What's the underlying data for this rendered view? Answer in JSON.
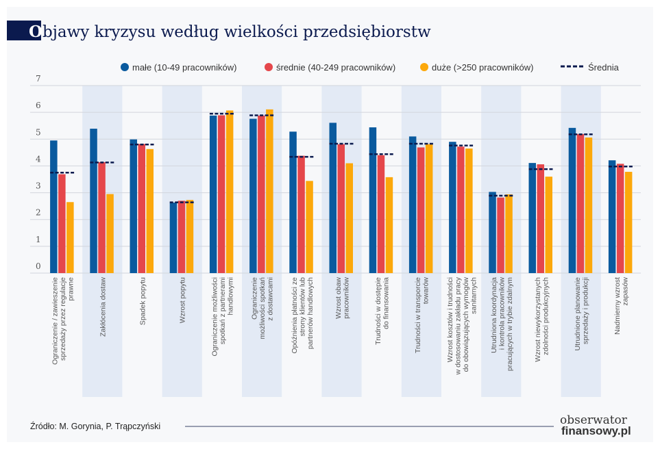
{
  "title": {
    "first_letter": "O",
    "rest": "bjawy kryzysu według wielkości przedsiębiorstw"
  },
  "source": "Źródło: M. Gorynia, P. Trąpczyński",
  "logo": {
    "line1": "obserwator",
    "line2": "finansowy.pl"
  },
  "colors": {
    "male": "#0a5a9e",
    "srednie": "#e5474b",
    "duze": "#fca80b",
    "srednia": "#0b1a4e",
    "band": "#e3eaf5",
    "title_block": "#0b1a4e"
  },
  "chart_data": {
    "type": "bar",
    "title": "Objawy kryzysu według wielkości przedsiębiorstw",
    "ylim": [
      0,
      7
    ],
    "yticks": [
      "0",
      "1",
      "2",
      "3",
      "4",
      "5",
      "6",
      "7"
    ],
    "grid": true,
    "legend_placement": "top-right",
    "categories": [
      [
        "Ograniczenie / zawieszenie",
        "sprzedaży przez regulacje",
        "prawne"
      ],
      [
        "Zakłócenia dostaw"
      ],
      [
        "Spadek popytu"
      ],
      [
        "Wzrost popytu"
      ],
      [
        "Ograniczenie możliwości",
        "spotkań z partnerami",
        "handlowymi"
      ],
      [
        "Ograniczenie",
        "możliwości spotkań",
        "z dostawcami"
      ],
      [
        "Opóźnienia płatności ze",
        "strony klientów lub",
        "partnerów handlowych"
      ],
      [
        "Wzrost obaw",
        "pracowników"
      ],
      [
        "Trudności w dostępie",
        "do finansowania"
      ],
      [
        "Trudności w transporcie",
        "towarów"
      ],
      [
        "Wzrost kosztów i trudności",
        "w dostosowaniu zakładu pracy",
        "do obowiązujących wymogów",
        "sanitarnych"
      ],
      [
        "Utrudniona koordynacja",
        "i kontrola pracowników",
        "pracujących w trybie zdalnym"
      ],
      [
        "Wzrost niewykorzystanych",
        "zdolności produkcyjnych"
      ],
      [
        "Utrudnione planowanie",
        "sprzedaży i produkcji"
      ],
      [
        "Nadmierny wzrost",
        "zapasów"
      ]
    ],
    "series": [
      {
        "name": "małe (10-49 pracowników)",
        "values": [
          4.95,
          5.39,
          4.99,
          2.63,
          5.88,
          5.76,
          5.28,
          5.61,
          5.44,
          5.1,
          4.9,
          3.03,
          4.11,
          5.42,
          4.21
        ]
      },
      {
        "name": "średnie (40-249 pracowników)",
        "values": [
          3.69,
          4.14,
          4.82,
          2.7,
          5.89,
          5.88,
          4.38,
          4.81,
          4.4,
          4.69,
          4.72,
          2.82,
          4.06,
          5.19,
          4.08
        ]
      },
      {
        "name": "duże (>250 pracowników)",
        "values": [
          2.65,
          2.95,
          4.63,
          2.73,
          6.07,
          6.11,
          3.44,
          4.1,
          3.58,
          4.81,
          4.65,
          2.94,
          3.6,
          5.06,
          3.78
        ]
      }
    ],
    "average": {
      "name": "Średnia",
      "values": [
        3.75,
        4.13,
        4.8,
        2.64,
        5.95,
        5.89,
        4.34,
        4.83,
        4.44,
        4.83,
        4.76,
        2.89,
        3.88,
        5.18,
        3.98
      ]
    }
  }
}
